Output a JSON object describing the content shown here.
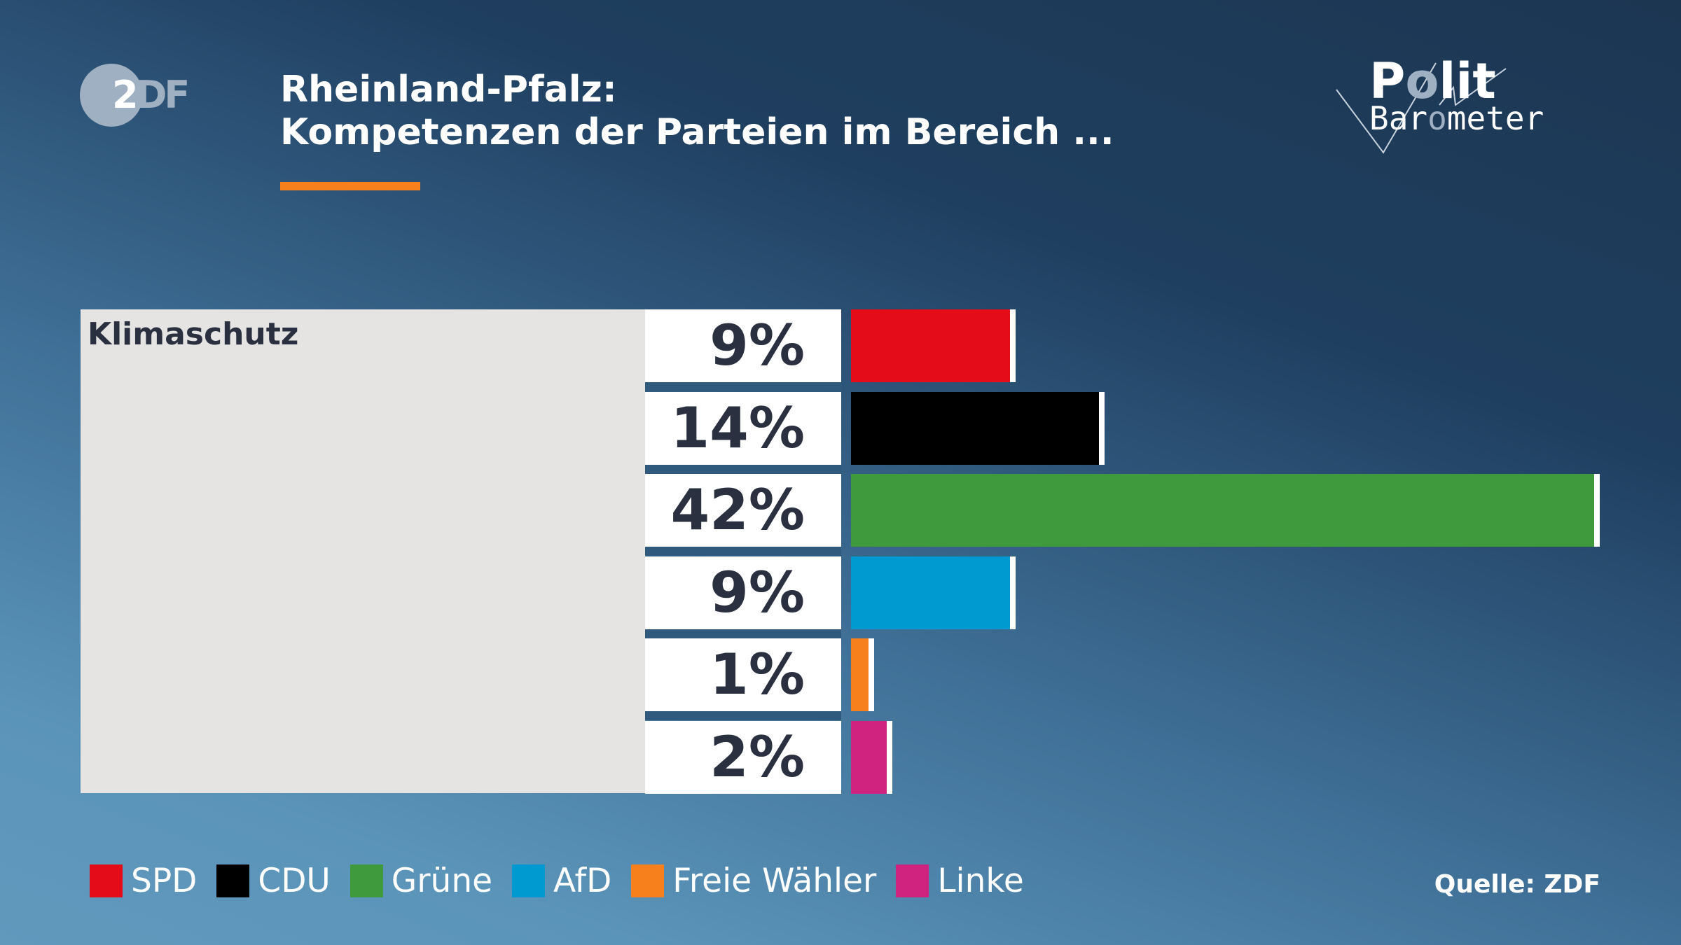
{
  "header": {
    "logo": "ZDF",
    "title_line1": "Rheinland-Pfalz:",
    "title_line2": "Kompetenzen der Parteien im Bereich ...",
    "brand_logo": "Polit Barometer",
    "accent_color": "#f7801c"
  },
  "chart_data": {
    "type": "bar",
    "orientation": "horizontal",
    "category": "Klimaschutz",
    "categories": [
      "SPD",
      "CDU",
      "Grüne",
      "AfD",
      "Freie Wähler",
      "Linke"
    ],
    "values": [
      9,
      14,
      42,
      9,
      1,
      2
    ],
    "labels": [
      "9%",
      "14%",
      "42%",
      "9%",
      "1%",
      "2%"
    ],
    "colors": [
      "#e30c18",
      "#000000",
      "#3f9a3d",
      "#0099d0",
      "#f7801c",
      "#d0237f"
    ],
    "unit": "%",
    "legend": "bottom-left",
    "grid": false
  },
  "footer": {
    "source": "Quelle: ZDF"
  }
}
